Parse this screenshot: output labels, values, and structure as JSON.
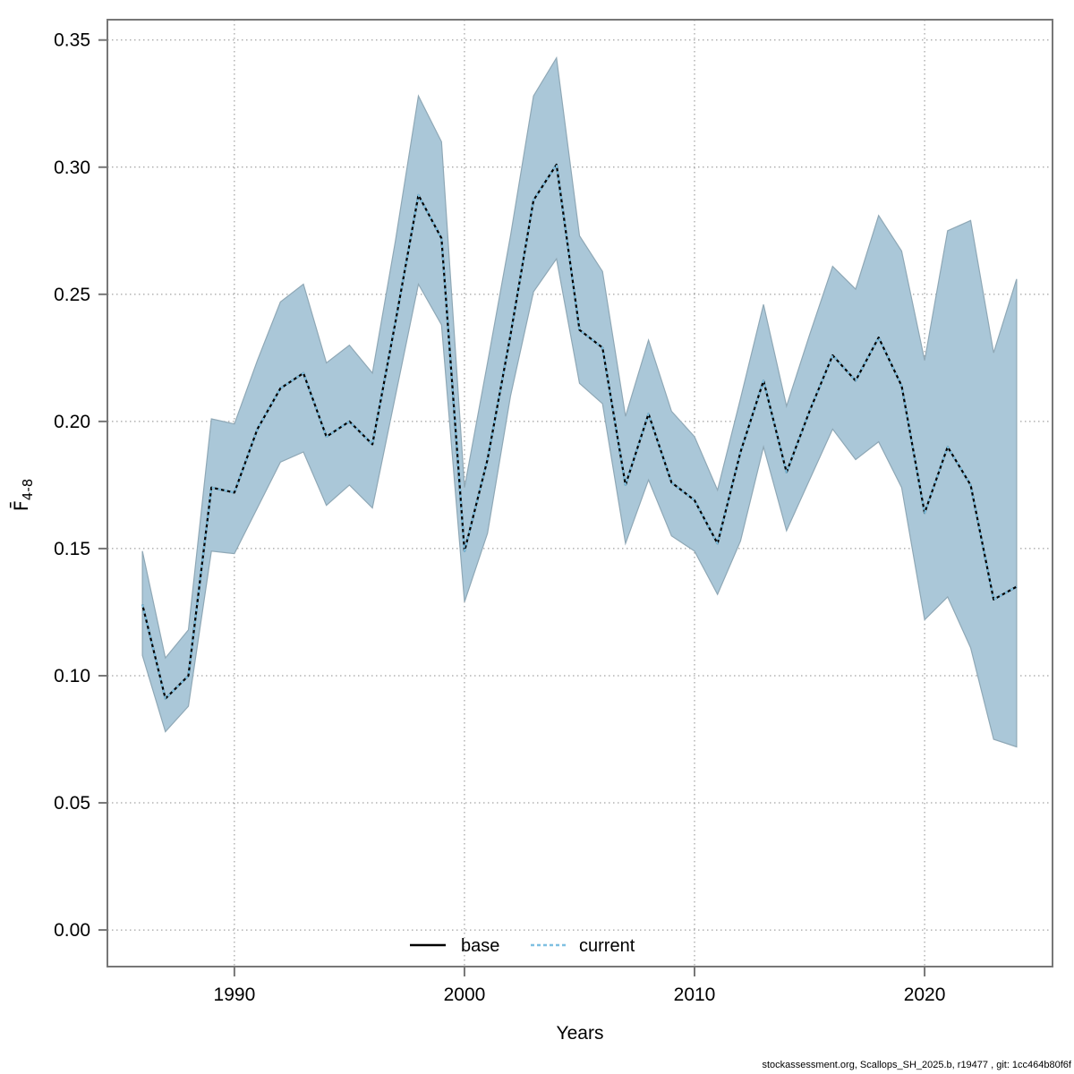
{
  "footer": "stockassessment.org, Scallops_SH_2025.b, r19477 , git: 1cc464b80f6f",
  "chart_data": {
    "type": "line",
    "title": "",
    "xlabel": "Years",
    "ylabel_main": "F̄",
    "ylabel_sub": "4-8",
    "xlim": [
      1984.48,
      2025.56
    ],
    "ylim": [
      -0.0144,
      0.358
    ],
    "grid": true,
    "colors": {
      "band_fill": "#aac7d8",
      "band_stroke": "#8fa8b6",
      "base_line": "#000000",
      "current_line": "#7fc0e1",
      "grid_line": "#8c8c8c",
      "axis_box": "#777777"
    },
    "x_ticks": [
      {
        "value": 1990,
        "label": "1990"
      },
      {
        "value": 2000,
        "label": "2000"
      },
      {
        "value": 2010,
        "label": "2010"
      },
      {
        "value": 2020,
        "label": "2020"
      }
    ],
    "y_ticks": [
      {
        "value": 0.0,
        "label": "0.00"
      },
      {
        "value": 0.05,
        "label": "0.05"
      },
      {
        "value": 0.1,
        "label": "0.10"
      },
      {
        "value": 0.15,
        "label": "0.15"
      },
      {
        "value": 0.2,
        "label": "0.20"
      },
      {
        "value": 0.25,
        "label": "0.25"
      },
      {
        "value": 0.3,
        "label": "0.30"
      },
      {
        "value": 0.35,
        "label": "0.35"
      }
    ],
    "years": [
      1986,
      1987,
      1988,
      1989,
      1990,
      1991,
      1992,
      1993,
      1994,
      1995,
      1996,
      1997,
      1998,
      1999,
      2000,
      2001,
      2002,
      2003,
      2004,
      2005,
      2006,
      2007,
      2008,
      2009,
      2010,
      2011,
      2012,
      2013,
      2014,
      2015,
      2016,
      2017,
      2018,
      2019,
      2020,
      2021,
      2022,
      2023,
      2024
    ],
    "band": {
      "name": "confidence-interval",
      "lower": [
        0.108,
        0.078,
        0.088,
        0.149,
        0.148,
        0.166,
        0.184,
        0.188,
        0.167,
        0.175,
        0.166,
        0.21,
        0.254,
        0.238,
        0.129,
        0.156,
        0.21,
        0.251,
        0.264,
        0.215,
        0.207,
        0.152,
        0.177,
        0.155,
        0.149,
        0.132,
        0.153,
        0.19,
        0.157,
        0.177,
        0.197,
        0.185,
        0.192,
        0.174,
        0.122,
        0.131,
        0.111,
        0.075,
        0.072
      ],
      "upper": [
        0.149,
        0.107,
        0.118,
        0.201,
        0.199,
        0.224,
        0.247,
        0.254,
        0.223,
        0.23,
        0.219,
        0.271,
        0.328,
        0.31,
        0.174,
        0.223,
        0.273,
        0.328,
        0.343,
        0.273,
        0.259,
        0.202,
        0.232,
        0.204,
        0.194,
        0.173,
        0.209,
        0.246,
        0.206,
        0.234,
        0.261,
        0.252,
        0.281,
        0.267,
        0.224,
        0.275,
        0.279,
        0.227,
        0.256
      ]
    },
    "series": [
      {
        "name": "base",
        "style": "solid",
        "values": [
          0.128,
          0.091,
          0.1,
          0.174,
          0.172,
          0.197,
          0.213,
          0.219,
          0.194,
          0.2,
          0.191,
          0.239,
          0.289,
          0.272,
          0.149,
          0.185,
          0.234,
          0.287,
          0.301,
          0.236,
          0.229,
          0.175,
          0.203,
          0.176,
          0.169,
          0.152,
          0.188,
          0.216,
          0.18,
          0.204,
          0.226,
          0.216,
          0.233,
          0.214,
          0.164,
          0.19,
          0.175,
          0.13,
          0.135
        ]
      },
      {
        "name": "current",
        "style": "dotted",
        "values": [
          0.128,
          0.091,
          0.1,
          0.174,
          0.172,
          0.197,
          0.213,
          0.219,
          0.194,
          0.2,
          0.191,
          0.239,
          0.289,
          0.272,
          0.149,
          0.185,
          0.234,
          0.287,
          0.301,
          0.236,
          0.229,
          0.175,
          0.203,
          0.176,
          0.169,
          0.152,
          0.188,
          0.216,
          0.18,
          0.204,
          0.226,
          0.216,
          0.233,
          0.214,
          0.164,
          0.19,
          0.175,
          0.13,
          0.135
        ]
      }
    ],
    "legend": {
      "position": "bottom-center",
      "items": [
        {
          "label": "base",
          "style": "solid"
        },
        {
          "label": "current",
          "style": "dotted"
        }
      ]
    }
  }
}
